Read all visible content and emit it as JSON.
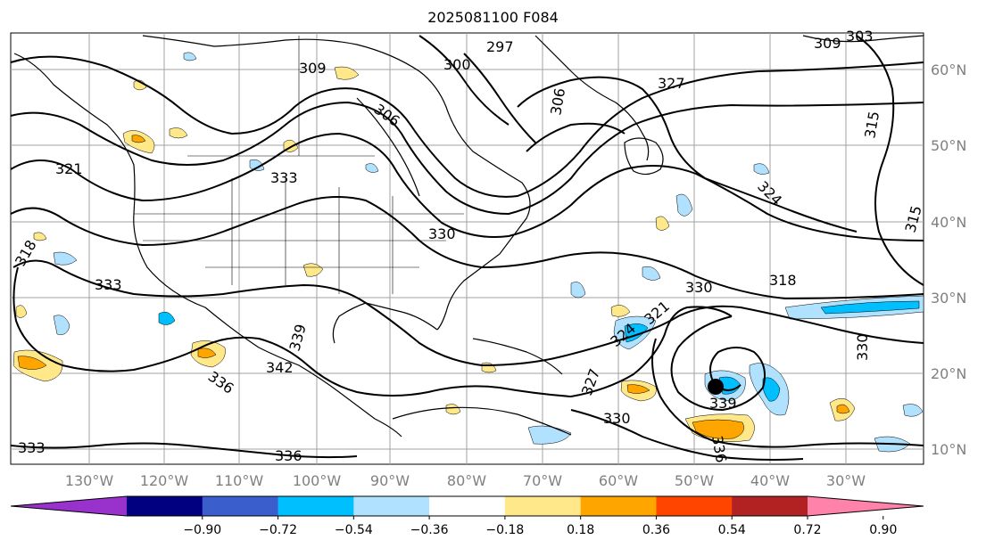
{
  "title": "2025081100 F084",
  "map": {
    "lon_labels": [
      "130°W",
      "120°W",
      "110°W",
      "100°W",
      "90°W",
      "80°W",
      "70°W",
      "60°W",
      "50°W",
      "40°W",
      "30°W"
    ],
    "lat_labels": [
      "60°N",
      "50°N",
      "40°N",
      "30°N",
      "20°N",
      "10°N"
    ],
    "contour_labels": [
      "309",
      "306",
      "300",
      "297",
      "327",
      "315",
      "318",
      "321",
      "324",
      "333",
      "330",
      "330",
      "333",
      "336",
      "342",
      "339",
      "339",
      "336",
      "330",
      "327",
      "324",
      "321",
      "318",
      "315",
      "330",
      "309",
      "303",
      "306",
      "333",
      "336"
    ],
    "storm_marker": "black-dot"
  },
  "colorbar": {
    "colors": [
      "#9932cc",
      "#000080",
      "#3a5fcd",
      "#00bfff",
      "#b0e2ff",
      "#ffffff",
      "#ffe88a",
      "#ffa500",
      "#ff4500",
      "#b22222",
      "#ff82ab"
    ],
    "ticks": [
      "−0.90",
      "−0.72",
      "−0.54",
      "−0.36",
      "−0.18",
      "0.18",
      "0.36",
      "0.54",
      "0.72",
      "0.90"
    ]
  }
}
